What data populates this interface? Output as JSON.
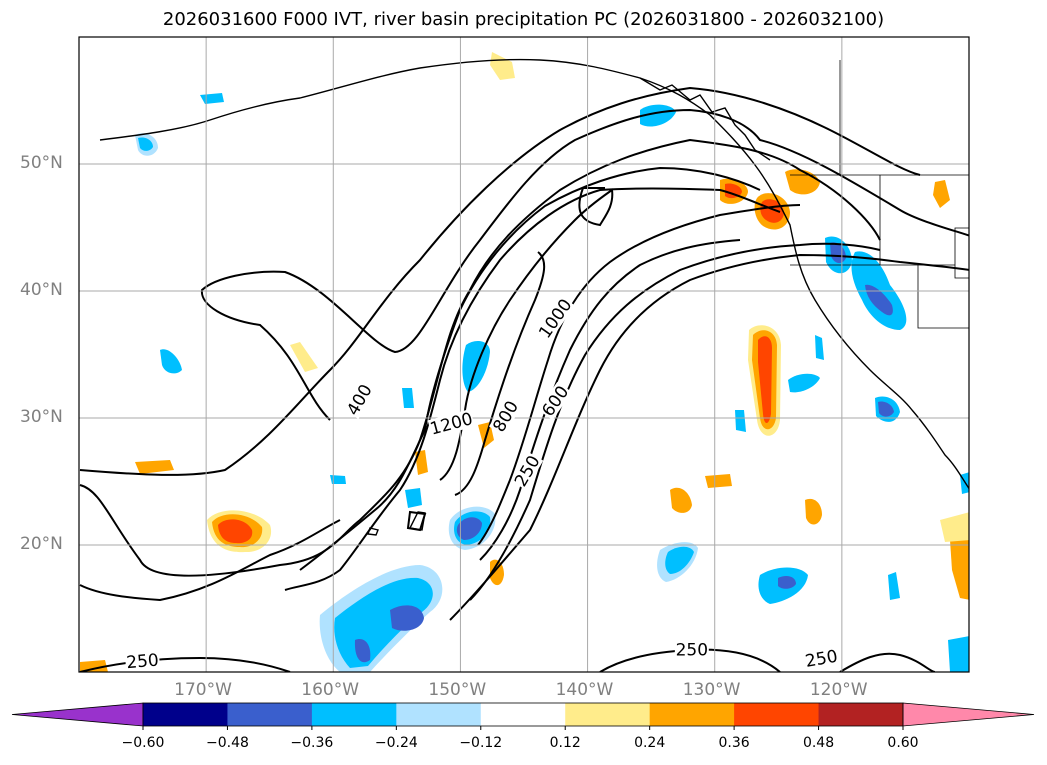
{
  "title": "2026031600 F000 IVT, river basin precipitation PC (2026031800 - 2026032100)",
  "map": {
    "projection": "PlateCarree",
    "extent": {
      "lon_min": -180,
      "lon_max": -110,
      "lat_min": 10,
      "lat_max": 60
    },
    "gridlines": {
      "lons": [
        -170,
        -160,
        -150,
        -140,
        -130,
        -120
      ],
      "lats": [
        20,
        30,
        40,
        50
      ]
    },
    "lat_labels": [
      "20°N",
      "30°N",
      "40°N",
      "50°N"
    ],
    "lon_labels": [
      "170°W",
      "160°W",
      "150°W",
      "140°W",
      "130°W",
      "120°W"
    ],
    "grid_color": "#a9a9a9"
  },
  "ivt_contours": {
    "levels": [
      250,
      400,
      600,
      800,
      1000,
      1200
    ],
    "labels": [
      {
        "text": "400",
        "lon": -157.9,
        "lat": 31.4,
        "angle": -60
      },
      {
        "text": "1200",
        "lon": -150.7,
        "lat": 29.5,
        "angle": -15
      },
      {
        "text": "800",
        "lon": -146.4,
        "lat": 30.1,
        "angle": -60
      },
      {
        "text": "1000",
        "lon": -142.5,
        "lat": 37.8,
        "angle": -55
      },
      {
        "text": "600",
        "lon": -142.5,
        "lat": 31.3,
        "angle": -55
      },
      {
        "text": "250",
        "lon": -144.7,
        "lat": 25.8,
        "angle": -60
      },
      {
        "text": "250",
        "lon": -131.8,
        "lat": 11.7,
        "angle": 0
      },
      {
        "text": "250",
        "lon": -121.6,
        "lat": 11.0,
        "angle": -10
      },
      {
        "text": "250",
        "lon": -175.0,
        "lat": 10.8,
        "angle": -5
      }
    ]
  },
  "colorbar": {
    "ticks": [
      "−0.60",
      "−0.48",
      "−0.36",
      "−0.24",
      "−0.12",
      "0.12",
      "0.24",
      "0.36",
      "0.48",
      "0.60"
    ],
    "colors": [
      "#9932cc",
      "#00008b",
      "#3a5fcd",
      "#00bfff",
      "#b0e2ff",
      "#ffffff",
      "#ffec8b",
      "#ffa500",
      "#ff4500",
      "#b22222",
      "#ff88aa"
    ]
  }
}
